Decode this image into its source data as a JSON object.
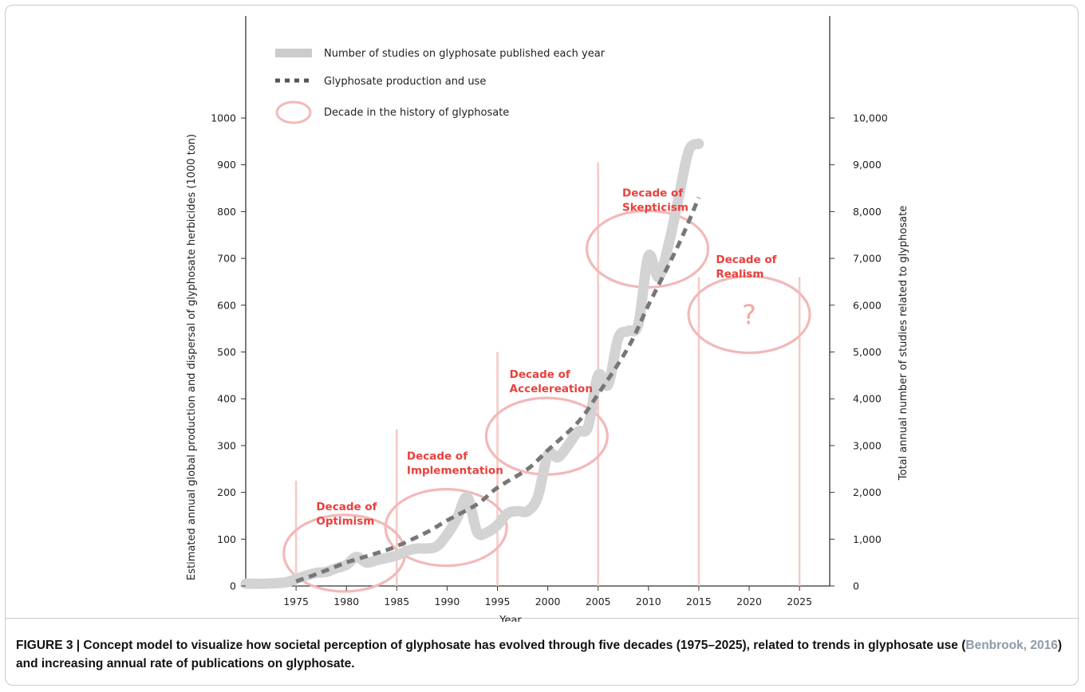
{
  "chart_data": {
    "type": "line",
    "xlabel": "Year",
    "ylabel_left": "Estimated annual global production and dispersal of glyphosate herbicides  (1000 ton)",
    "ylabel_right": "Total annual number of studies related to glyphosate",
    "xlim": [
      1970,
      2028
    ],
    "ylim_left": [
      0,
      1000
    ],
    "ylim_right": [
      0,
      10000
    ],
    "x_ticks": [
      "1975",
      "1980",
      "1985",
      "1990",
      "1995",
      "2000",
      "2005",
      "2010",
      "2015",
      "2020",
      "2025"
    ],
    "y_ticks_left": [
      "0",
      "100",
      "200",
      "300",
      "400",
      "500",
      "600",
      "700",
      "800",
      "900",
      "1000"
    ],
    "y_ticks_right": [
      "0",
      "1,000",
      "2,000",
      "3,000",
      "4,000",
      "5,000",
      "6,000",
      "7,000",
      "8,000",
      "9,000",
      "10,000"
    ],
    "legend": {
      "placement": "top-left",
      "entries": [
        {
          "label": "Number of studies on glyphosate published each year",
          "style": "solid-gray-band",
          "color": "#cccccc"
        },
        {
          "label": "Glyphosate production and use",
          "style": "dashed",
          "color": "#777777"
        },
        {
          "label": "Decade in the history of glyphosate",
          "style": "ellipse",
          "color": "#f3b8b8"
        }
      ]
    },
    "series": [
      {
        "name": "Number of studies on glyphosate published each year",
        "axis": "right",
        "color": "#cccccc",
        "x": [
          1970,
          1972,
          1974,
          1975,
          1976,
          1977,
          1978,
          1979,
          1980,
          1981,
          1982,
          1983,
          1984,
          1985,
          1986,
          1987,
          1988,
          1989,
          1990,
          1991,
          1992,
          1993,
          1994,
          1995,
          1996,
          1997,
          1998,
          1999,
          2000,
          2001,
          2002,
          2003,
          2004,
          2005,
          2006,
          2007,
          2008,
          2009,
          2010,
          2011,
          2012,
          2013,
          2014,
          2015
        ],
        "y": [
          50,
          50,
          80,
          150,
          220,
          280,
          300,
          380,
          450,
          620,
          500,
          550,
          600,
          650,
          750,
          800,
          800,
          850,
          1100,
          1450,
          1900,
          1150,
          1150,
          1300,
          1550,
          1600,
          1600,
          1900,
          2800,
          2750,
          3000,
          3300,
          3400,
          4500,
          4300,
          5300,
          5450,
          5600,
          7050,
          6600,
          7300,
          8300,
          9300,
          9450
        ]
      },
      {
        "name": "Glyphosate production and use",
        "axis": "left",
        "color": "#777777",
        "x": [
          1975,
          1977,
          1980,
          1983,
          1985,
          1988,
          1990,
          1993,
          1995,
          1998,
          2000,
          2003,
          2005,
          2008,
          2010,
          2013,
          2015
        ],
        "y": [
          10,
          25,
          50,
          70,
          85,
          115,
          140,
          175,
          210,
          250,
          290,
          350,
          410,
          510,
          600,
          730,
          830
        ]
      }
    ],
    "decades": [
      {
        "label_line1": "Decade of",
        "label_line2": "Optimism",
        "start": 1975,
        "end": 1985,
        "line_top": 225,
        "cx": 1979.8,
        "cy": 70,
        "label_x": 1977,
        "label_y": 162
      },
      {
        "label_line1": "Decade of",
        "label_line2": "Implementation",
        "start": 1985,
        "end": 1995,
        "line_top": 335,
        "cx": 1989.9,
        "cy": 125,
        "label_x": 1986,
        "label_y": 270
      },
      {
        "label_line1": "Decade of",
        "label_line2": "Accelereation",
        "start": 1995,
        "end": 2005,
        "line_top": 500,
        "cx": 1999.9,
        "cy": 320,
        "label_x": 1996.2,
        "label_y": 445
      },
      {
        "label_line1": "Decade of",
        "label_line2": "Skepticism",
        "start": 2005,
        "end": 2015,
        "line_top": 905,
        "cx": 2009.9,
        "cy": 720,
        "label_x": 2007.4,
        "label_y": 832
      },
      {
        "label_line1": "Decade of",
        "label_line2": "Realism",
        "start": 2015,
        "end": 2025,
        "line_top": 660,
        "cx": 2020,
        "cy": 580,
        "label_x": 2016.7,
        "label_y": 690,
        "marker": "?"
      }
    ]
  },
  "caption": {
    "prefix": "FIGURE 3 | Concept model to visualize how societal perception of glyphosate has evolved through five decades (1975–2025), related to trends in glyphosate use (",
    "reference": "Benbrook, 2016",
    "suffix": ") and increasing annual rate of publications on glyphosate."
  },
  "colors": {
    "decade_red": "#e8403c",
    "decade_pink": "#f3b8b8",
    "studies_gray": "#cccccc",
    "production_gray": "#777777",
    "axis": "#333333"
  }
}
